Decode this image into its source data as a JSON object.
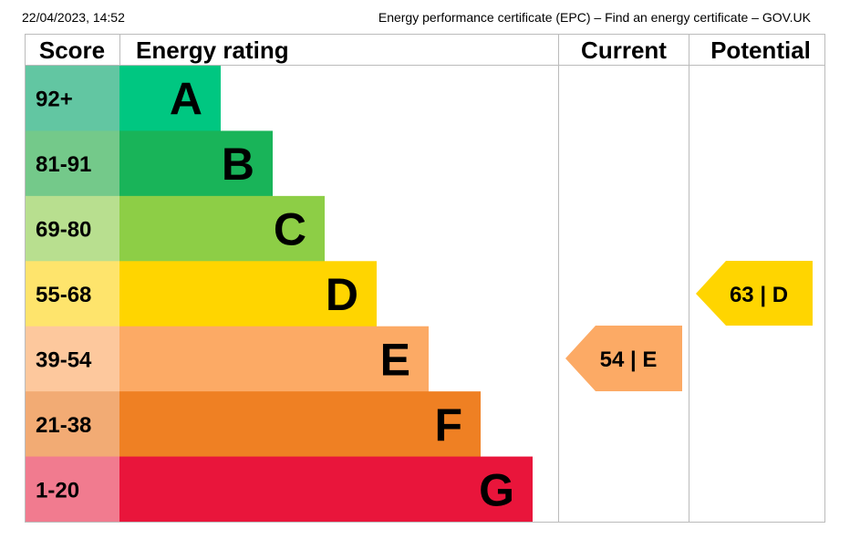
{
  "header": {
    "timestamp": "22/04/2023, 14:52",
    "title": "Energy performance certificate (EPC) – Find an energy certificate – GOV.UK"
  },
  "table": {
    "columns": [
      "Score",
      "Energy rating",
      "Current",
      "Potential"
    ],
    "rows": [
      {
        "score": "92+",
        "rating": "A"
      },
      {
        "score": "81-91",
        "rating": "B"
      },
      {
        "score": "69-80",
        "rating": "C"
      },
      {
        "score": "55-68",
        "rating": "D"
      },
      {
        "score": "39-54",
        "rating": "E"
      },
      {
        "score": "21-38",
        "rating": "F"
      },
      {
        "score": "1-20",
        "rating": "G"
      }
    ],
    "current": "54 | E",
    "potential": "63 | D"
  }
}
